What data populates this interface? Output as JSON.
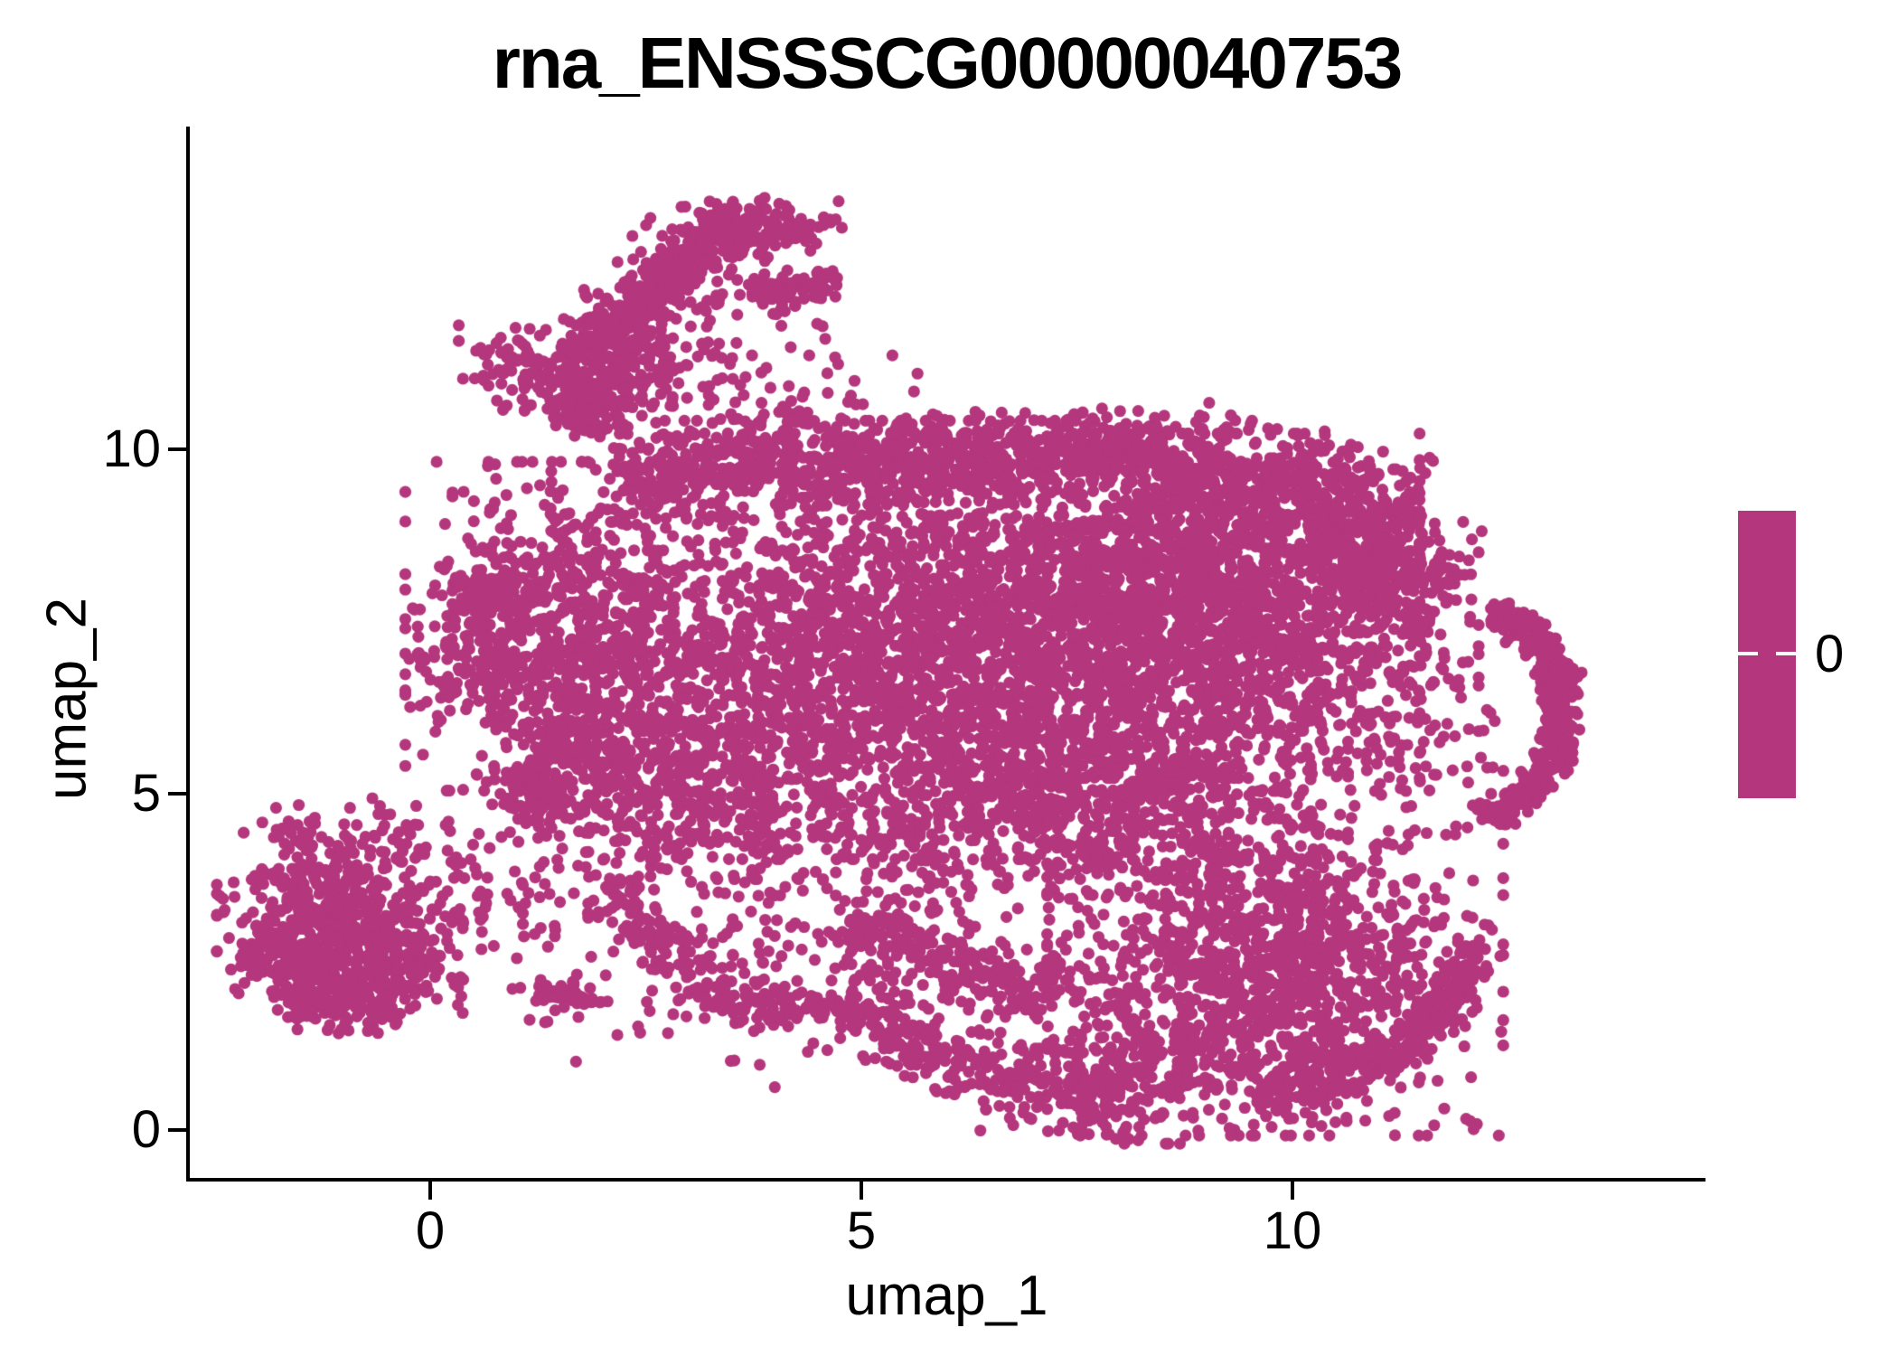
{
  "title": "rna_ENSSSCG00000040753",
  "axes": {
    "x": {
      "label": "umap_1",
      "tick_labels": [
        "0",
        "5",
        "10"
      ]
    },
    "y": {
      "label": "umap_2",
      "tick_labels": [
        "0",
        "5",
        "10"
      ]
    }
  },
  "legend": {
    "label": "0",
    "bar_color": "#B4377D"
  },
  "colors": {
    "points": "#B4377D",
    "axis": "#000000",
    "background": "#ffffff"
  },
  "chart_data": {
    "type": "scatter",
    "title": "rna_ENSSSCG00000040753",
    "xlabel": "umap_1",
    "ylabel": "umap_2",
    "xlim": [
      -2.79,
      14.77
    ],
    "ylim": [
      -0.73,
      14.74
    ],
    "x_ticks": [
      0,
      5,
      10
    ],
    "y_ticks": [
      0,
      5,
      10
    ],
    "grid": false,
    "legend_position": "right",
    "legend_values": [
      0
    ],
    "point_color": "#B4377D",
    "point_radius_px": 6.6,
    "seed": 42,
    "clusters": [
      {
        "type": "strip",
        "x1": 2.0,
        "y1": 11.6,
        "x2": 3.45,
        "y2": 13.35,
        "w": 0.17,
        "n": 330
      },
      {
        "type": "strip",
        "x1": 1.65,
        "y1": 10.35,
        "x2": 2.25,
        "y2": 11.75,
        "w": 0.28,
        "n": 190
      },
      {
        "type": "strip",
        "x1": 1.9,
        "y1": 11.0,
        "x2": 3.5,
        "y2": 13.2,
        "w": 0.45,
        "n": 170
      },
      {
        "type": "gauss",
        "cx": 3.9,
        "cy": 13.28,
        "sx": 0.38,
        "sy": 0.18,
        "n": 120
      },
      {
        "type": "strip",
        "x1": 3.7,
        "y1": 12.25,
        "x2": 4.7,
        "y2": 12.45,
        "w": 0.13,
        "n": 85
      },
      {
        "type": "gauss",
        "cx": 1.02,
        "cy": 11.2,
        "sx": 0.3,
        "sy": 0.27,
        "n": 85
      },
      {
        "type": "gauss",
        "cx": 1.8,
        "cy": 10.6,
        "sx": 0.24,
        "sy": 0.26,
        "n": 70
      },
      {
        "type": "gauss",
        "cx": 2.9,
        "cy": 10.9,
        "sx": 0.65,
        "sy": 0.6,
        "n": 100
      },
      {
        "type": "gauss",
        "cx": 4.45,
        "cy": 11.0,
        "sx": 0.55,
        "sy": 0.75,
        "n": 26
      },
      {
        "type": "gauss",
        "cx": 1.55,
        "cy": 7.4,
        "sx": 0.8,
        "sy": 1.05,
        "n": 750
      },
      {
        "type": "strip",
        "x1": 0.38,
        "y1": 6.3,
        "x2": 0.62,
        "y2": 8.2,
        "w": 0.27,
        "n": 130
      },
      {
        "type": "strip",
        "x1": 0.95,
        "y1": 4.65,
        "x2": 1.8,
        "y2": 5.9,
        "w": 0.33,
        "n": 170
      },
      {
        "type": "strip",
        "x1": 2.2,
        "y1": 9.5,
        "x2": 4.5,
        "y2": 9.95,
        "w": 0.34,
        "n": 320
      },
      {
        "type": "strip",
        "x1": 4.6,
        "y1": 9.85,
        "x2": 8.6,
        "y2": 9.95,
        "w": 0.3,
        "n": 620
      },
      {
        "type": "strip",
        "x1": 8.65,
        "y1": 9.8,
        "x2": 11.35,
        "y2": 8.85,
        "w": 0.45,
        "n": 480
      },
      {
        "type": "gauss",
        "cx": 5.6,
        "cy": 7.2,
        "sx": 1.6,
        "sy": 1.4,
        "n": 1900
      },
      {
        "type": "gauss",
        "cx": 3.6,
        "cy": 6.1,
        "sx": 1.0,
        "sy": 1.05,
        "n": 500
      },
      {
        "type": "gauss",
        "cx": 2.7,
        "cy": 4.95,
        "sx": 0.85,
        "sy": 0.6,
        "n": 280
      },
      {
        "type": "gauss",
        "cx": 8.6,
        "cy": 7.7,
        "sx": 1.25,
        "sy": 1.1,
        "n": 1750
      },
      {
        "type": "gauss",
        "cx": 8.0,
        "cy": 5.3,
        "sx": 1.15,
        "sy": 0.8,
        "n": 600
      },
      {
        "type": "gauss",
        "cx": 6.5,
        "cy": 4.7,
        "sx": 1.2,
        "sy": 0.7,
        "n": 380
      },
      {
        "type": "strip",
        "x1": 10.2,
        "y1": 8.75,
        "x2": 11.9,
        "y2": 7.9,
        "w": 0.42,
        "n": 300
      },
      {
        "type": "arc",
        "cx": 11.35,
        "cy": 6.15,
        "r1": 1.6,
        "r2": 2.0,
        "a1": -62,
        "a2": 58,
        "n": 400
      },
      {
        "type": "gauss",
        "cx": 11.4,
        "cy": 5.95,
        "sx": 0.55,
        "sy": 0.7,
        "n": 65
      },
      {
        "type": "gauss",
        "cx": 10.55,
        "cy": 6.95,
        "sx": 0.7,
        "sy": 0.85,
        "n": 240
      },
      {
        "type": "gauss",
        "cx": 9.8,
        "cy": 2.45,
        "sx": 1.15,
        "sy": 1.1,
        "n": 1300
      },
      {
        "type": "arc",
        "cx": 9.2,
        "cy": 3.5,
        "r1": 2.85,
        "r2": 3.25,
        "a1": -83,
        "a2": -15,
        "n": 280
      },
      {
        "type": "gauss",
        "cx": 8.45,
        "cy": 0.95,
        "sx": 0.9,
        "sy": 0.5,
        "n": 260
      },
      {
        "type": "strip",
        "x1": 6.3,
        "y1": 0.8,
        "x2": 8.2,
        "y2": 0.4,
        "w": 0.28,
        "n": 150
      },
      {
        "type": "strip",
        "x1": 5.2,
        "y1": 1.6,
        "x2": 6.4,
        "y2": 0.85,
        "w": 0.25,
        "n": 110
      },
      {
        "type": "strip",
        "x1": 2.05,
        "y1": 3.6,
        "x2": 3.25,
        "y2": 2.0,
        "w": 0.18,
        "n": 120
      },
      {
        "type": "strip",
        "x1": 3.25,
        "y1": 1.95,
        "x2": 5.3,
        "y2": 1.72,
        "w": 0.15,
        "n": 130
      },
      {
        "type": "strip",
        "x1": 4.8,
        "y1": 3.0,
        "x2": 6.0,
        "y2": 2.5,
        "w": 0.2,
        "n": 110
      },
      {
        "type": "strip",
        "x1": 6.0,
        "y1": 2.45,
        "x2": 7.25,
        "y2": 1.9,
        "w": 0.24,
        "n": 130
      },
      {
        "type": "gauss",
        "cx": 4.5,
        "cy": 2.7,
        "sx": 1.4,
        "sy": 0.9,
        "n": 220
      },
      {
        "type": "gauss",
        "cx": 1.55,
        "cy": 1.95,
        "sx": 0.22,
        "sy": 0.16,
        "n": 45
      },
      {
        "type": "gauss",
        "cx": 0.8,
        "cy": 3.45,
        "sx": 0.6,
        "sy": 0.65,
        "n": 80
      },
      {
        "type": "gauss",
        "cx": -1.05,
        "cy": 3.1,
        "sx": 0.62,
        "sy": 0.6,
        "n": 480
      },
      {
        "type": "gauss",
        "cx": -1.5,
        "cy": 2.45,
        "sx": 0.35,
        "sy": 0.34,
        "n": 150
      },
      {
        "type": "gauss",
        "cx": -0.4,
        "cy": 2.35,
        "sx": 0.34,
        "sy": 0.3,
        "n": 130
      },
      {
        "type": "gauss",
        "cx": -0.9,
        "cy": 4.25,
        "sx": 0.55,
        "sy": 0.3,
        "n": 75
      },
      {
        "type": "strip",
        "x1": -1.6,
        "y1": 1.78,
        "x2": -0.35,
        "y2": 1.72,
        "w": 0.17,
        "n": 85
      }
    ]
  }
}
